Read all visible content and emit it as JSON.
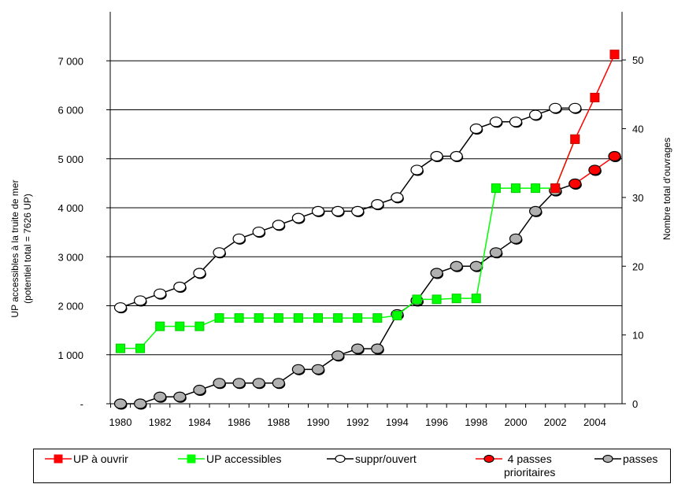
{
  "chart_data": {
    "type": "line",
    "x": [
      1980,
      1981,
      1982,
      1983,
      1984,
      1985,
      1986,
      1987,
      1988,
      1989,
      1990,
      1991,
      1992,
      1993,
      1994,
      1995,
      1996,
      1997,
      1998,
      1999,
      2000,
      2001,
      2002,
      2003,
      2004,
      2005
    ],
    "x_tick_labels": [
      "1980",
      "1982",
      "1984",
      "1986",
      "1988",
      "1990",
      "1992",
      "1994",
      "1996",
      "1998",
      "2000",
      "2002",
      "2004"
    ],
    "y_left": {
      "label_line1": "UP accessibles à la truite de mer",
      "label_line2": "(potentiel total = 7626 UP)",
      "range": [
        0,
        8000
      ],
      "tick_labels": [
        "-",
        "1 000",
        "2 000",
        "3 000",
        "4 000",
        "5 000",
        "6 000",
        "7 000"
      ]
    },
    "y_right": {
      "label": "Nombre total d'ouvrages",
      "range": [
        0,
        57
      ],
      "tick_labels": [
        "0",
        "10",
        "20",
        "30",
        "40",
        "50"
      ]
    },
    "grid": true,
    "legend_position": "bottom",
    "series": [
      {
        "name": "UP à ouvrir",
        "axis": "left",
        "color": "#ff0000",
        "marker": "square",
        "marker_fill": "#ff0000",
        "x": [
          2002,
          2003,
          2004,
          2005
        ],
        "values": [
          4400,
          5400,
          6250,
          7130
        ]
      },
      {
        "name": "UP accessibles",
        "axis": "left",
        "color": "#00ff00",
        "marker": "square",
        "marker_fill": "#00ff00",
        "x": [
          1980,
          1981,
          1982,
          1983,
          1984,
          1985,
          1986,
          1987,
          1988,
          1989,
          1990,
          1991,
          1992,
          1993,
          1994,
          1995,
          1996,
          1997,
          1998,
          1999,
          2000,
          2001,
          2002,
          2003
        ],
        "values": [
          1130,
          1130,
          1580,
          1580,
          1580,
          1750,
          1750,
          1750,
          1750,
          1750,
          1750,
          1750,
          1750,
          1750,
          1800,
          2130,
          2130,
          2150,
          2150,
          4400,
          4400,
          4400,
          4400,
          5400
        ]
      },
      {
        "name": "suppr/ouvert",
        "axis": "right",
        "color": "#000000",
        "marker": "circle",
        "marker_fill": "#ffffff",
        "x": [
          1980,
          1981,
          1982,
          1983,
          1984,
          1985,
          1986,
          1987,
          1988,
          1989,
          1990,
          1991,
          1992,
          1993,
          1994,
          1995,
          1996,
          1997,
          1998,
          1999,
          2000,
          2001,
          2002,
          2003
        ],
        "values": [
          14,
          15,
          16,
          17,
          19,
          22,
          24,
          25,
          26,
          27,
          28,
          28,
          28,
          29,
          30,
          34,
          36,
          36,
          40,
          41,
          41,
          42,
          43,
          43
        ]
      },
      {
        "name": "4 passes prioritaires",
        "axis": "right",
        "color": "#ff0000",
        "marker": "circle",
        "marker_fill": "#ff0000",
        "x": [
          2003,
          2004,
          2005
        ],
        "values": [
          32,
          34,
          36
        ]
      },
      {
        "name": "passes",
        "axis": "right",
        "color": "#000000",
        "marker": "circle",
        "marker_fill": "#b0b0b0",
        "x": [
          1980,
          1981,
          1982,
          1983,
          1984,
          1985,
          1986,
          1987,
          1988,
          1989,
          1990,
          1991,
          1992,
          1993,
          1994,
          1995,
          1996,
          1997,
          1998,
          1999,
          2000,
          2001,
          2002,
          2003
        ],
        "values": [
          0,
          0,
          1,
          1,
          2,
          3,
          3,
          3,
          3,
          5,
          5,
          7,
          8,
          8,
          13,
          15,
          19,
          20,
          20,
          22,
          24,
          28,
          31,
          32
        ]
      }
    ]
  },
  "legend": {
    "items": [
      {
        "label": "UP à ouvrir"
      },
      {
        "label": "UP accessibles"
      },
      {
        "label": "suppr/ouvert"
      },
      {
        "label": "4 passes\nprioritaires"
      },
      {
        "label": "passes"
      }
    ]
  }
}
